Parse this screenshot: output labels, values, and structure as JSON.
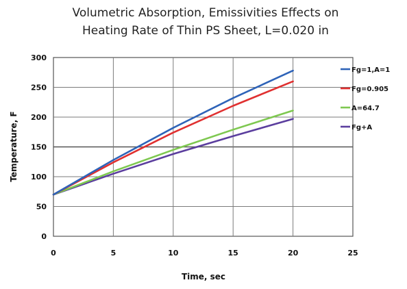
{
  "chart_data": {
    "type": "line",
    "title_lines": [
      "Volumetric Absorption, Emissivities Effects on",
      "Heating Rate of Thin PS Sheet, L=0.020 in"
    ],
    "xlabel": "Time, sec",
    "ylabel": "Temperature, F",
    "xlim": [
      0,
      25
    ],
    "ylim": [
      0,
      300
    ],
    "xticks": [
      "0",
      "5",
      "10",
      "15",
      "20",
      "25"
    ],
    "yticks": [
      "0",
      "50",
      "100",
      "150",
      "200",
      "250",
      "300"
    ],
    "grid": true,
    "legend_position": "right",
    "series": [
      {
        "name": "Fg=1,A=1",
        "color": "#2e63b8",
        "x": [
          0,
          5,
          10,
          15,
          20
        ],
        "y": [
          70,
          128,
          182,
          232,
          278
        ]
      },
      {
        "name": "Fg=0.905",
        "color": "#e03030",
        "x": [
          0,
          5,
          10,
          15,
          20
        ],
        "y": [
          70,
          124,
          174,
          219,
          260
        ]
      },
      {
        "name": "A=64.7",
        "color": "#7ec850",
        "x": [
          0,
          5,
          10,
          15,
          20
        ],
        "y": [
          70,
          109,
          145,
          179,
          211
        ]
      },
      {
        "name": "Fg+A",
        "color": "#5b3e9e",
        "x": [
          0,
          5,
          10,
          15,
          20
        ],
        "y": [
          70,
          105,
          138,
          168,
          197
        ]
      }
    ]
  }
}
